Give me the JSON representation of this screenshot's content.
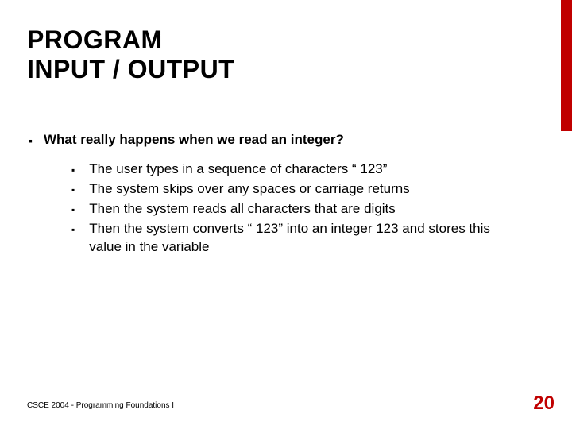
{
  "colors": {
    "accent": "#c00000",
    "background": "#ffffff",
    "text": "#000000"
  },
  "title_line1": "PROGRAM",
  "title_line2": "INPUT / OUTPUT",
  "main_question": "What really happens when we read an integer?",
  "sub_items": [
    "The user types in a sequence of characters “ 123”",
    "The system skips over any spaces or carriage returns",
    "Then the system reads all characters that are digits",
    "Then the system converts “ 123” into an integer 123 and stores this value in the variable"
  ],
  "footer": "CSCE 2004 - Programming Foundations I",
  "page_number": "20",
  "bullet_marker": "▪"
}
